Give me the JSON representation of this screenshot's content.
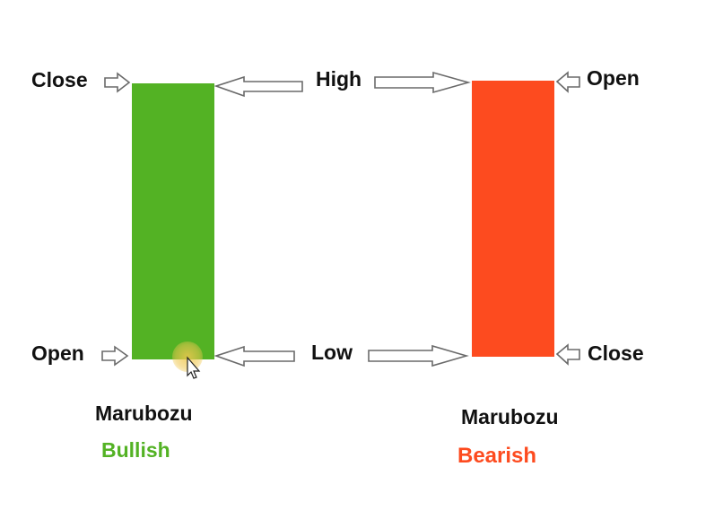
{
  "bullish": {
    "close_label": "Close",
    "open_label": "Open",
    "name": "Marubozu",
    "type_label": "Bullish",
    "color": "#53b224"
  },
  "bearish": {
    "open_label": "Open",
    "close_label": "Close",
    "name": "Marubozu",
    "type_label": "Bearish",
    "color": "#fd4b1f"
  },
  "center": {
    "high_label": "High",
    "low_label": "Low"
  },
  "arrow_icon": "outline-arrow-icon",
  "cursor_icon": "mouse-pointer-icon"
}
